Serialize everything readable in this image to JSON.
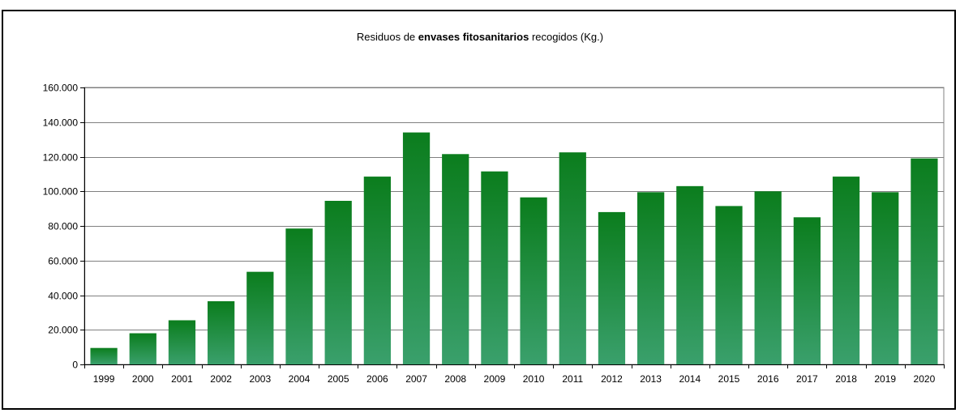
{
  "chart_data": {
    "type": "bar",
    "title_parts": {
      "pre": "Residuos de ",
      "bold": "envases fitosanitarios",
      "post": " recogidos (Kg.)"
    },
    "categories": [
      "1999",
      "2000",
      "2001",
      "2002",
      "2003",
      "2004",
      "2005",
      "2006",
      "2007",
      "2008",
      "2009",
      "2010",
      "2011",
      "2012",
      "2013",
      "2014",
      "2015",
      "2016",
      "2017",
      "2018",
      "2019",
      "2020"
    ],
    "values": [
      9500,
      18000,
      25500,
      36500,
      53500,
      78500,
      94500,
      108500,
      134000,
      121500,
      111500,
      96500,
      122500,
      88000,
      99500,
      103000,
      91500,
      100000,
      85000,
      108500,
      99500,
      119000
    ],
    "ylim": [
      0,
      160000
    ],
    "yticks": [
      0,
      20000,
      40000,
      60000,
      80000,
      100000,
      120000,
      140000,
      160000
    ],
    "ytick_labels": [
      "0",
      "20.000",
      "40.000",
      "60.000",
      "80.000",
      "100.000",
      "120.000",
      "140.000",
      "160.000"
    ],
    "grid": true,
    "colors": {
      "bar_top": "#0b7d1d",
      "bar_bottom": "#3aa06c",
      "grid": "#808080"
    }
  }
}
